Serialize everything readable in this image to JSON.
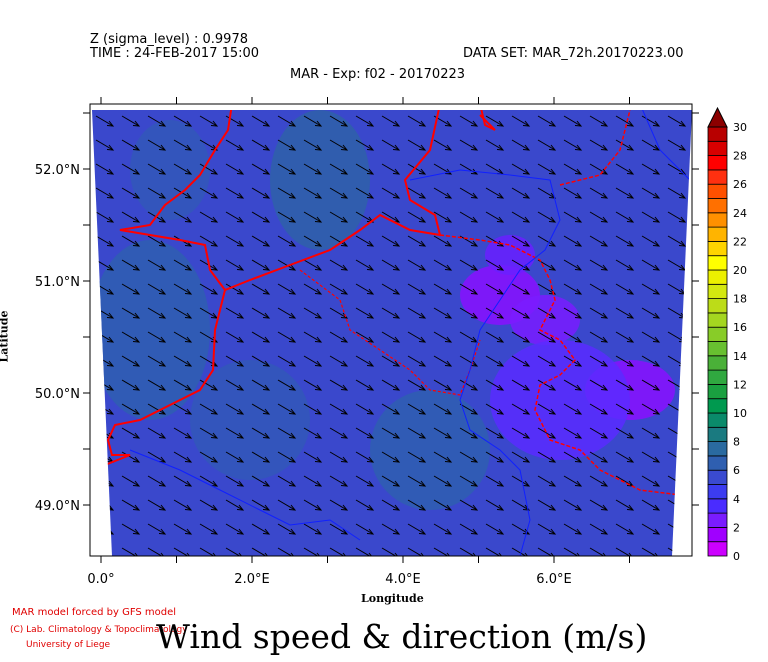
{
  "header": {
    "level": "Z (sigma_level) : 0.9978",
    "time": "TIME : 24-FEB-2017 15:00",
    "dataset": "DATA SET: MAR_72h.20170223.00",
    "subtitle": "MAR - Exp: f02 - 20170223"
  },
  "axes": {
    "xlabel": "Longitude",
    "ylabel": "Latitude",
    "xticks": [
      "0.0°",
      "2.0°E",
      "4.0°E",
      "6.0°E"
    ],
    "xtick_values": [
      0,
      2,
      4,
      6
    ],
    "yticks": [
      "52.0°N",
      "51.0°N",
      "50.0°N",
      "49.0°N"
    ],
    "ytick_values": [
      52,
      51,
      50,
      49
    ]
  },
  "colorbar": {
    "ticks": [
      "0",
      "2",
      "4",
      "6",
      "8",
      "10",
      "12",
      "14",
      "16",
      "18",
      "20",
      "22",
      "24",
      "26",
      "28",
      "30"
    ],
    "min": 0,
    "max": 30,
    "colors": [
      "#cc00ff",
      "#a000ff",
      "#7a1cff",
      "#4a2cff",
      "#3c3cf0",
      "#3a4ad0",
      "#2f5fb0",
      "#2a6aa0",
      "#1a7a80",
      "#0a8a6a",
      "#00994f",
      "#1aa040",
      "#30a840",
      "#4ab038",
      "#68c030",
      "#88cc28",
      "#a4d620",
      "#bcdc18",
      "#d4e810",
      "#ecf000",
      "#ffff00",
      "#ffd400",
      "#ffb400",
      "#ff9000",
      "#ff7000",
      "#ff5000",
      "#ff3010",
      "#ff0000",
      "#d80000",
      "#b80000"
    ],
    "over_color": "#8b0000"
  },
  "wind": {
    "direction": "north-west to south-east",
    "typical_speed_ms": "4-6"
  },
  "credits": {
    "line1": "MAR model forced by GFS model",
    "line2": "(C) Lab. Climatology & Topoclimatology",
    "line3": "University of Liege"
  },
  "title": "Wind speed & direction (m/s)"
}
